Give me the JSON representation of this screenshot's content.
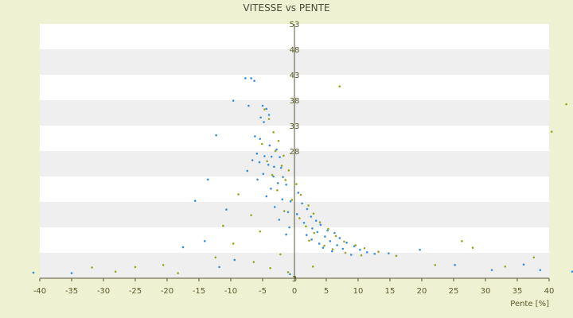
{
  "chart_data": {
    "type": "scatter",
    "title": "VITESSE vs PENTE",
    "xlabel": "Pente [%]",
    "ylabel": "",
    "xlim": [
      -40,
      40
    ],
    "ylim": [
      3,
      53
    ],
    "x_ticks": [
      -40,
      -35,
      -30,
      -25,
      -20,
      -15,
      -10,
      -5,
      0,
      5,
      10,
      15,
      20,
      25,
      30,
      35,
      40
    ],
    "y_ticks": [
      3,
      8,
      13,
      18,
      23,
      28,
      33,
      38,
      43,
      48,
      53
    ],
    "y_tick_labels": [
      "3",
      "",
      "",
      "",
      "",
      "28",
      "33",
      "38",
      "43",
      "48",
      "53"
    ],
    "grid": "horizontal bands",
    "series": [
      {
        "color": "#3a8fd8",
        "points": [
          [
            -7.7,
            42.3
          ],
          [
            -6.8,
            42.3
          ],
          [
            -6.3,
            41.8
          ],
          [
            -9.6,
            37.9
          ],
          [
            -7.2,
            36.9
          ],
          [
            -5.0,
            36.9
          ],
          [
            -4.4,
            36.3
          ],
          [
            -4.0,
            35.1
          ],
          [
            -5.3,
            34.6
          ],
          [
            -4.8,
            33.7
          ],
          [
            -12.3,
            31.1
          ],
          [
            -6.2,
            30.9
          ],
          [
            -5.4,
            30.4
          ],
          [
            -3.9,
            29.1
          ],
          [
            -2.8,
            28.3
          ],
          [
            -5.9,
            27.5
          ],
          [
            -4.7,
            27.0
          ],
          [
            -3.6,
            26.9
          ],
          [
            -2.3,
            26.8
          ],
          [
            -6.6,
            26.2
          ],
          [
            -5.5,
            25.8
          ],
          [
            -4.1,
            25.3
          ],
          [
            -3.2,
            24.9
          ],
          [
            -2.1,
            24.7
          ],
          [
            -7.4,
            24.1
          ],
          [
            -4.9,
            23.5
          ],
          [
            -3.3,
            23.0
          ],
          [
            -1.8,
            22.9
          ],
          [
            -5.8,
            22.4
          ],
          [
            -2.6,
            21.7
          ],
          [
            -1.3,
            21.4
          ],
          [
            -3.7,
            20.6
          ],
          [
            0.6,
            19.8
          ],
          [
            -4.4,
            19.1
          ],
          [
            -1.9,
            18.5
          ],
          [
            -0.6,
            18.1
          ],
          [
            1.2,
            17.7
          ],
          [
            -3.1,
            17.0
          ],
          [
            2.0,
            16.6
          ],
          [
            -1.0,
            16.0
          ],
          [
            0.4,
            15.6
          ],
          [
            2.6,
            15.1
          ],
          [
            -2.4,
            14.5
          ],
          [
            3.4,
            14.3
          ],
          [
            1.5,
            13.9
          ],
          [
            4.1,
            13.5
          ],
          [
            -0.8,
            13.0
          ],
          [
            2.8,
            12.8
          ],
          [
            5.2,
            12.4
          ],
          [
            3.6,
            12.1
          ],
          [
            6.3,
            11.9
          ],
          [
            1.9,
            11.5
          ],
          [
            4.8,
            11.2
          ],
          [
            7.1,
            10.9
          ],
          [
            2.7,
            10.6
          ],
          [
            5.6,
            10.3
          ],
          [
            8.2,
            10.0
          ],
          [
            3.9,
            9.8
          ],
          [
            6.7,
            9.5
          ],
          [
            9.4,
            9.3
          ],
          [
            4.5,
            9.0
          ],
          [
            7.6,
            8.8
          ],
          [
            10.3,
            8.6
          ],
          [
            5.9,
            8.3
          ],
          [
            11.4,
            8.1
          ],
          [
            12.6,
            7.8
          ],
          [
            8.9,
            7.6
          ],
          [
            14.8,
            7.9
          ],
          [
            19.7,
            8.6
          ],
          [
            -9.4,
            6.6
          ],
          [
            -14.1,
            10.3
          ],
          [
            -17.5,
            9.1
          ],
          [
            -11.8,
            5.2
          ],
          [
            -1.3,
            11.6
          ],
          [
            -13.6,
            22.4
          ],
          [
            -15.6,
            18.2
          ],
          [
            -10.7,
            16.5
          ],
          [
            25.2,
            5.6
          ],
          [
            31.0,
            4.6
          ],
          [
            36.0,
            5.7
          ],
          [
            -0.7,
            3.8
          ],
          [
            -35.0,
            4.0
          ],
          [
            -41.0,
            4.1
          ],
          [
            44.0,
            4.3
          ],
          [
            38.6,
            4.6
          ]
        ]
      },
      {
        "color": "#9aa520",
        "points": [
          [
            7.1,
            40.7
          ],
          [
            -4.7,
            36.2
          ],
          [
            -4.0,
            34.3
          ],
          [
            -3.3,
            31.7
          ],
          [
            -2.5,
            30.0
          ],
          [
            -5.1,
            29.4
          ],
          [
            -3.0,
            28.0
          ],
          [
            -1.7,
            27.1
          ],
          [
            -4.3,
            26.0
          ],
          [
            -2.0,
            25.1
          ],
          [
            -0.9,
            24.2
          ],
          [
            -3.5,
            23.3
          ],
          [
            -1.4,
            22.3
          ],
          [
            0.3,
            21.5
          ],
          [
            -2.7,
            20.3
          ],
          [
            1.0,
            19.4
          ],
          [
            -0.4,
            18.4
          ],
          [
            2.2,
            17.3
          ],
          [
            -1.6,
            16.2
          ],
          [
            3.0,
            15.7
          ],
          [
            0.8,
            14.8
          ],
          [
            4.0,
            14.0
          ],
          [
            1.8,
            13.2
          ],
          [
            5.3,
            12.7
          ],
          [
            3.1,
            11.9
          ],
          [
            6.5,
            11.3
          ],
          [
            2.3,
            10.4
          ],
          [
            7.8,
            10.2
          ],
          [
            4.7,
            9.4
          ],
          [
            9.6,
            9.5
          ],
          [
            6.0,
            8.7
          ],
          [
            11.0,
            8.9
          ],
          [
            8.0,
            8.0
          ],
          [
            13.2,
            8.2
          ],
          [
            10.5,
            7.5
          ],
          [
            16.0,
            7.4
          ],
          [
            22.1,
            5.6
          ],
          [
            28.0,
            9.0
          ],
          [
            26.3,
            10.3
          ],
          [
            33.1,
            5.3
          ],
          [
            37.6,
            7.1
          ],
          [
            -9.6,
            9.8
          ],
          [
            -12.4,
            7.1
          ],
          [
            -6.4,
            6.2
          ],
          [
            -3.8,
            5.0
          ],
          [
            -1.0,
            4.2
          ],
          [
            -20.6,
            5.6
          ],
          [
            -25.0,
            5.2
          ],
          [
            -31.8,
            5.1
          ],
          [
            -28.1,
            4.3
          ],
          [
            -18.3,
            4.0
          ],
          [
            -8.8,
            19.5
          ],
          [
            -6.8,
            15.4
          ],
          [
            -5.4,
            12.2
          ],
          [
            -11.2,
            13.3
          ],
          [
            42.7,
            37.2
          ],
          [
            40.4,
            31.8
          ],
          [
            0.0,
            3.3
          ],
          [
            -2.2,
            7.7
          ],
          [
            2.9,
            5.3
          ]
        ]
      }
    ]
  }
}
